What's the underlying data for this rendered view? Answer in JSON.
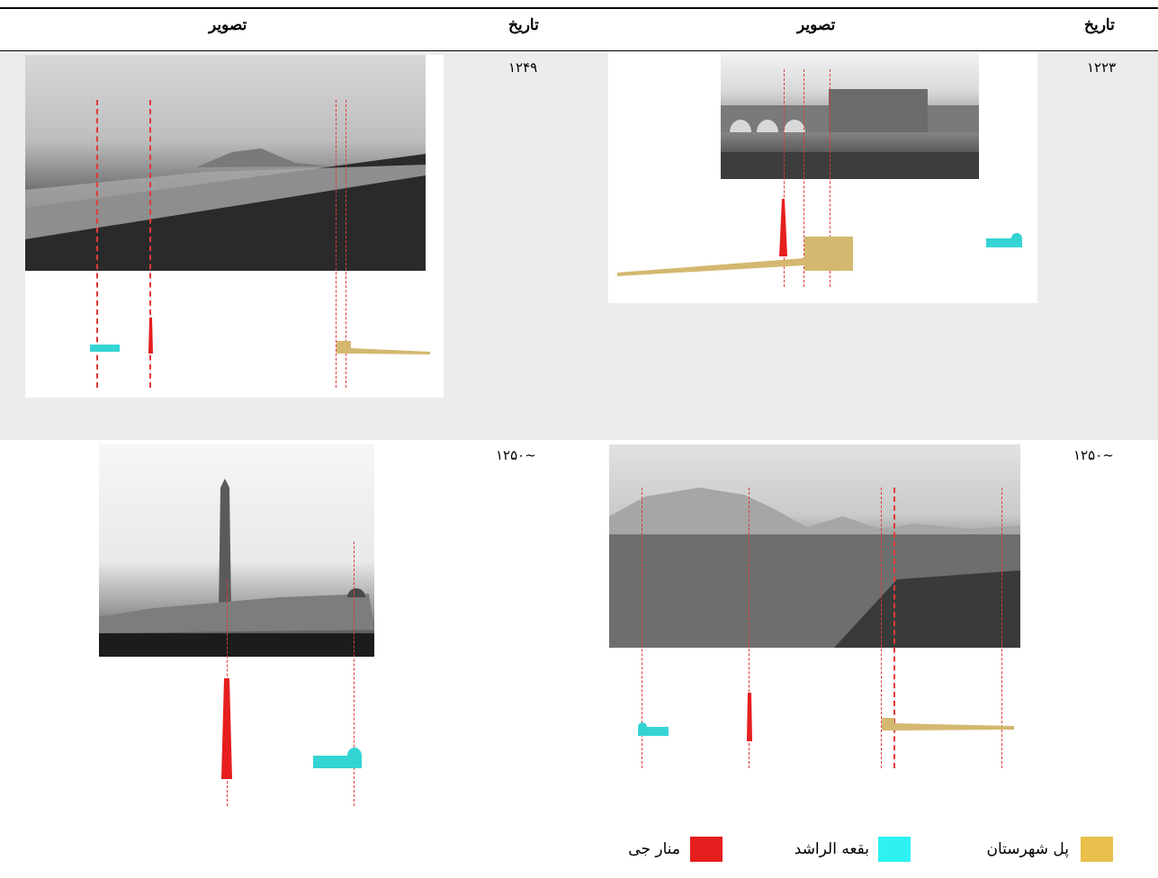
{
  "header": {
    "date_label_right": "تاریخ",
    "image_label_right": "تصویر",
    "date_label_left": "تاریخ",
    "image_label_left": "تصویر"
  },
  "rows": [
    {
      "right": {
        "date": "۱۲۲۳",
        "image": "engraving-bridge-minaret"
      },
      "left": {
        "date": "۱۲۴۹",
        "image": "photo-riverbank-panorama"
      }
    },
    {
      "right": {
        "date": "~۱۲۵۰",
        "image": "photo-plain-panorama"
      },
      "left": {
        "date": "~۱۲۵۰",
        "image": "photo-minaret-closeup"
      }
    }
  ],
  "legend": [
    {
      "label": "پل شهرستان",
      "color": "#e8bf4a"
    },
    {
      "label": "بقعه الراشد",
      "color": "#2ef2f2"
    },
    {
      "label": "منار جی",
      "color": "#e61e1e"
    }
  ],
  "colors": {
    "minaret": "#e61e1e",
    "mausoleum": "#35d4d4",
    "bridge": "#d4b870",
    "guide": "#e03a3a"
  }
}
